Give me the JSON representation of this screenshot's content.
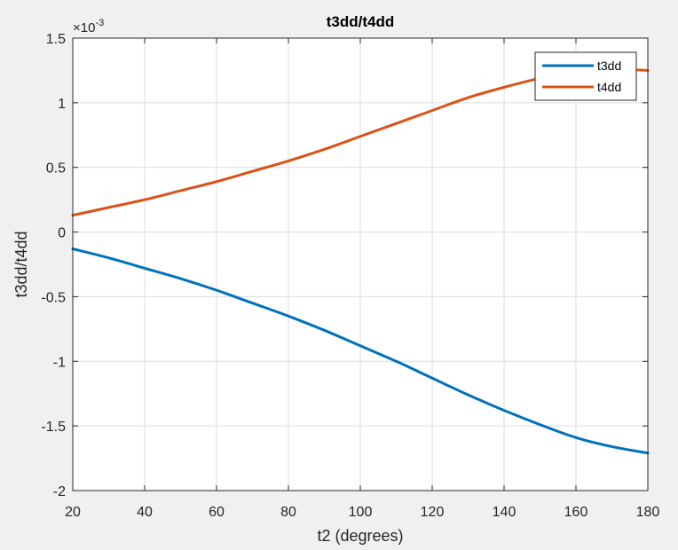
{
  "chart_data": {
    "type": "line",
    "title": "t3dd/t4dd",
    "xlabel": "t2 (degrees)",
    "ylabel": "t3dd/t4dd",
    "y_exponent_label": "×10",
    "y_exponent_power": "-3",
    "xlim": [
      20,
      180
    ],
    "ylim": [
      -2,
      1.5
    ],
    "x_ticks": [
      20,
      40,
      60,
      80,
      100,
      120,
      140,
      160,
      180
    ],
    "y_ticks": [
      -2,
      -1.5,
      -1,
      -0.5,
      0,
      0.5,
      1,
      1.5
    ],
    "x_tick_labels": [
      "20",
      "40",
      "60",
      "80",
      "100",
      "120",
      "140",
      "160",
      "180"
    ],
    "y_tick_labels": [
      "-2",
      "-1.5",
      "-1",
      "-0.5",
      "0",
      "0.5",
      "1",
      "1.5"
    ],
    "grid": true,
    "legend_position": "top-right",
    "x": [
      20,
      30,
      40,
      50,
      60,
      70,
      80,
      90,
      100,
      110,
      120,
      130,
      140,
      150,
      160,
      170,
      180
    ],
    "series": [
      {
        "name": "t3dd",
        "color": "#0072bd",
        "values": [
          -0.13,
          -0.2,
          -0.28,
          -0.36,
          -0.45,
          -0.55,
          -0.65,
          -0.76,
          -0.88,
          -1.0,
          -1.13,
          -1.26,
          -1.38,
          -1.49,
          -1.59,
          -1.66,
          -1.71
        ]
      },
      {
        "name": "t4dd",
        "color": "#d95319",
        "values": [
          0.13,
          0.19,
          0.25,
          0.32,
          0.39,
          0.47,
          0.55,
          0.64,
          0.74,
          0.84,
          0.94,
          1.04,
          1.12,
          1.19,
          1.24,
          1.26,
          1.25
        ]
      }
    ]
  }
}
